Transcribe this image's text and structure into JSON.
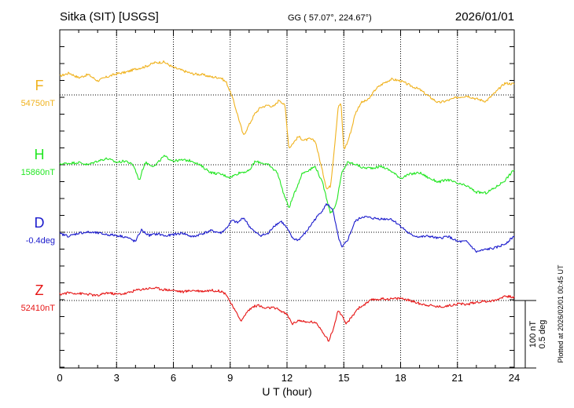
{
  "header": {
    "station": "Sitka (SIT)  [USGS]",
    "coords": "GG ( 57.07°, 224.67°)",
    "date": "2026/01/01"
  },
  "footer": {
    "plotted": "Plotted at 2026/02/01 00:45 UT"
  },
  "chart_data": {
    "type": "line",
    "xlabel": "U T (hour)",
    "xlim": [
      0,
      24
    ],
    "xticks": [
      "0",
      "3",
      "6",
      "9",
      "12",
      "15",
      "18",
      "21",
      "24"
    ],
    "grid": true,
    "scale_bar": {
      "nt": "100 nT",
      "deg": "0.5 deg"
    },
    "series": [
      {
        "name": "F",
        "baseline_label": "54750nT",
        "color": "#f0b21e",
        "points": [
          [
            0,
            24
          ],
          [
            0.5,
            28
          ],
          [
            1,
            22
          ],
          [
            1.5,
            26
          ],
          [
            2,
            18
          ],
          [
            2.5,
            23
          ],
          [
            3,
            27
          ],
          [
            3.5,
            29
          ],
          [
            4,
            33
          ],
          [
            4.5,
            36
          ],
          [
            5,
            41
          ],
          [
            5.5,
            42
          ],
          [
            6,
            35
          ],
          [
            6.5,
            31
          ],
          [
            7,
            27
          ],
          [
            7.5,
            26
          ],
          [
            8,
            23
          ],
          [
            8.5,
            22
          ],
          [
            8.8,
            16
          ],
          [
            9.1,
            -2
          ],
          [
            9.4,
            -26
          ],
          [
            9.7,
            -52
          ],
          [
            10,
            -38
          ],
          [
            10.3,
            -24
          ],
          [
            10.6,
            -16
          ],
          [
            11,
            -13
          ],
          [
            11.3,
            -15
          ],
          [
            11.6,
            -6
          ],
          [
            11.9,
            -14
          ],
          [
            12.1,
            -68
          ],
          [
            12.3,
            -62
          ],
          [
            12.6,
            -53
          ],
          [
            12.9,
            -58
          ],
          [
            13.2,
            -56
          ],
          [
            13.5,
            -59
          ],
          [
            13.8,
            -90
          ],
          [
            14.1,
            -120
          ],
          [
            14.3,
            -116
          ],
          [
            14.5,
            -68
          ],
          [
            14.7,
            -16
          ],
          [
            14.85,
            -10
          ],
          [
            15,
            -70
          ],
          [
            15.2,
            -60
          ],
          [
            15.4,
            -44
          ],
          [
            15.6,
            -24
          ],
          [
            15.9,
            -10
          ],
          [
            16.3,
            -6
          ],
          [
            16.7,
            8
          ],
          [
            17.1,
            15
          ],
          [
            17.5,
            20
          ],
          [
            18,
            18
          ],
          [
            18.5,
            12
          ],
          [
            19,
            7
          ],
          [
            19.5,
            -2
          ],
          [
            20,
            -10
          ],
          [
            20.5,
            -7
          ],
          [
            21,
            -3
          ],
          [
            21.5,
            -1
          ],
          [
            22,
            -5
          ],
          [
            22.5,
            -8
          ],
          [
            23,
            3
          ],
          [
            23.5,
            15
          ],
          [
            24,
            14
          ]
        ]
      },
      {
        "name": "H",
        "baseline_label": "15860nT",
        "color": "#22e622",
        "points": [
          [
            0,
            1
          ],
          [
            0.5,
            2
          ],
          [
            1,
            3
          ],
          [
            1.5,
            0
          ],
          [
            2,
            5
          ],
          [
            2.5,
            8
          ],
          [
            3,
            3
          ],
          [
            3.5,
            5
          ],
          [
            3.9,
            -1
          ],
          [
            4.2,
            -20
          ],
          [
            4.5,
            3
          ],
          [
            5,
            -2
          ],
          [
            5.5,
            11
          ],
          [
            6,
            5
          ],
          [
            6.5,
            6
          ],
          [
            7,
            5
          ],
          [
            7.5,
            -2
          ],
          [
            8,
            -10
          ],
          [
            8.5,
            -12
          ],
          [
            9,
            -16
          ],
          [
            9.5,
            -10
          ],
          [
            10,
            -8
          ],
          [
            10.3,
            4
          ],
          [
            10.6,
            3
          ],
          [
            11,
            0
          ],
          [
            11.5,
            -10
          ],
          [
            11.8,
            -35
          ],
          [
            12.1,
            -55
          ],
          [
            12.4,
            -36
          ],
          [
            12.8,
            -11
          ],
          [
            13.2,
            -6
          ],
          [
            13.5,
            -2
          ],
          [
            13.9,
            -25
          ],
          [
            14.3,
            -62
          ],
          [
            14.6,
            -50
          ],
          [
            14.9,
            -10
          ],
          [
            15.2,
            3
          ],
          [
            15.6,
            1
          ],
          [
            16,
            -4
          ],
          [
            16.5,
            -4
          ],
          [
            17,
            -2
          ],
          [
            17.5,
            -8
          ],
          [
            18,
            -17
          ],
          [
            18.5,
            -12
          ],
          [
            19,
            -10
          ],
          [
            19.5,
            -17
          ],
          [
            20,
            -22
          ],
          [
            20.5,
            -19
          ],
          [
            21,
            -24
          ],
          [
            21.5,
            -27
          ],
          [
            22,
            -35
          ],
          [
            22.5,
            -36
          ],
          [
            23,
            -29
          ],
          [
            23.5,
            -20
          ],
          [
            24,
            -6
          ]
        ]
      },
      {
        "name": "D",
        "baseline_label": "-0.4deg",
        "color": "#1a1acc",
        "points": [
          [
            0,
            -2
          ],
          [
            0.5,
            -5
          ],
          [
            1,
            -1
          ],
          [
            1.5,
            0
          ],
          [
            2,
            -1
          ],
          [
            2.5,
            -3
          ],
          [
            3,
            -4
          ],
          [
            3.5,
            -6
          ],
          [
            4,
            -12
          ],
          [
            4.3,
            3
          ],
          [
            4.7,
            -4
          ],
          [
            5.2,
            -2
          ],
          [
            5.6,
            -5
          ],
          [
            6,
            -3
          ],
          [
            6.5,
            -1
          ],
          [
            7,
            -6
          ],
          [
            7.5,
            -2
          ],
          [
            8,
            2
          ],
          [
            8.5,
            -1
          ],
          [
            8.8,
            5
          ],
          [
            9.1,
            15
          ],
          [
            9.4,
            12
          ],
          [
            9.7,
            19
          ],
          [
            10,
            8
          ],
          [
            10.3,
            0
          ],
          [
            10.6,
            -4
          ],
          [
            11,
            -2
          ],
          [
            11.3,
            8
          ],
          [
            11.7,
            14
          ],
          [
            12,
            5
          ],
          [
            12.3,
            -8
          ],
          [
            12.6,
            -10
          ],
          [
            13,
            0
          ],
          [
            13.4,
            14
          ],
          [
            13.8,
            26
          ],
          [
            14.1,
            36
          ],
          [
            14.4,
            30
          ],
          [
            14.7,
            -5
          ],
          [
            14.9,
            -20
          ],
          [
            15.2,
            -10
          ],
          [
            15.6,
            14
          ],
          [
            16,
            20
          ],
          [
            16.5,
            18
          ],
          [
            17,
            17
          ],
          [
            17.5,
            17
          ],
          [
            18,
            8
          ],
          [
            18.5,
            -3
          ],
          [
            19,
            -6
          ],
          [
            19.5,
            -5
          ],
          [
            20,
            -8
          ],
          [
            20.5,
            -5
          ],
          [
            21,
            -12
          ],
          [
            21.5,
            -12
          ],
          [
            22,
            -25
          ],
          [
            22.5,
            -22
          ],
          [
            23,
            -20
          ],
          [
            23.5,
            -15
          ],
          [
            24,
            -5
          ]
        ]
      },
      {
        "name": "Z",
        "baseline_label": "52410nT",
        "color": "#e61414",
        "points": [
          [
            0,
            8
          ],
          [
            0.5,
            10
          ],
          [
            1,
            9
          ],
          [
            1.5,
            8
          ],
          [
            2,
            6
          ],
          [
            2.5,
            10
          ],
          [
            3,
            8
          ],
          [
            3.5,
            9
          ],
          [
            4,
            13
          ],
          [
            4.5,
            15
          ],
          [
            5,
            16
          ],
          [
            5.5,
            14
          ],
          [
            6,
            13
          ],
          [
            6.5,
            11
          ],
          [
            7,
            13
          ],
          [
            7.5,
            12
          ],
          [
            8,
            13
          ],
          [
            8.5,
            12
          ],
          [
            8.8,
            8
          ],
          [
            9,
            -2
          ],
          [
            9.3,
            -15
          ],
          [
            9.6,
            -26
          ],
          [
            9.9,
            -14
          ],
          [
            10.2,
            -8
          ],
          [
            10.5,
            -6
          ],
          [
            10.8,
            -10
          ],
          [
            11.2,
            -9
          ],
          [
            11.6,
            -12
          ],
          [
            12,
            -18
          ],
          [
            12.3,
            -30
          ],
          [
            12.6,
            -25
          ],
          [
            13,
            -28
          ],
          [
            13.3,
            -27
          ],
          [
            13.6,
            -30
          ],
          [
            13.9,
            -40
          ],
          [
            14.2,
            -52
          ],
          [
            14.5,
            -32
          ],
          [
            14.7,
            -12
          ],
          [
            14.9,
            -20
          ],
          [
            15.1,
            -30
          ],
          [
            15.4,
            -22
          ],
          [
            15.7,
            -11
          ],
          [
            16.1,
            -5
          ],
          [
            16.5,
            1
          ],
          [
            17,
            2
          ],
          [
            17.5,
            2
          ],
          [
            18,
            3
          ],
          [
            18.5,
            0
          ],
          [
            19,
            -4
          ],
          [
            19.5,
            -6
          ],
          [
            20,
            -8
          ],
          [
            20.5,
            -7
          ],
          [
            21,
            -4
          ],
          [
            21.5,
            -5
          ],
          [
            22,
            -2
          ],
          [
            22.5,
            -1
          ],
          [
            23,
            0
          ],
          [
            23.5,
            6
          ],
          [
            24,
            4
          ]
        ]
      }
    ]
  }
}
